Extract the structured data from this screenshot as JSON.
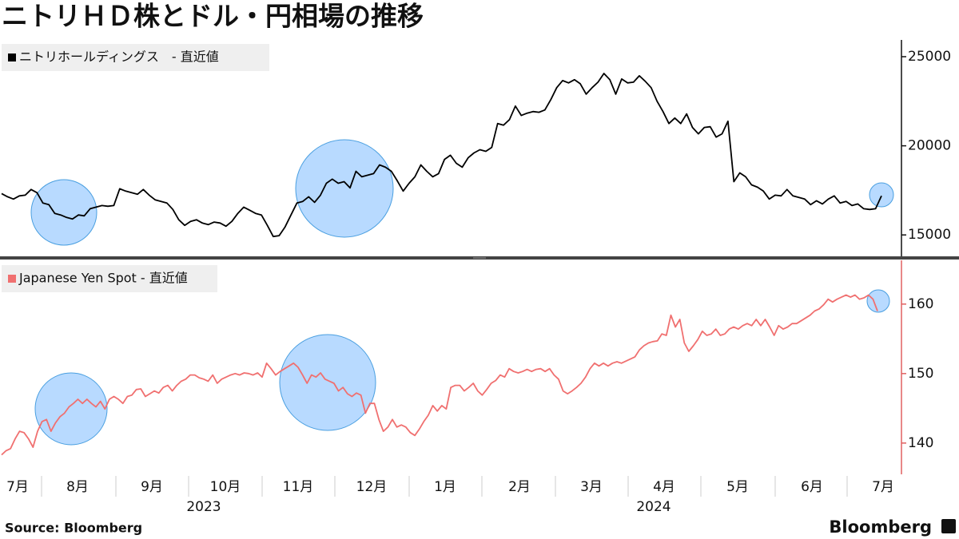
{
  "title": "ニトリＨＤ株とドル・円相場の推移",
  "source": "Source:  Bloomberg",
  "brand": "Bloomberg",
  "x_axis": {
    "months": [
      "7月",
      "8月",
      "9月",
      "10月",
      "11月",
      "12月",
      "1月",
      "2月",
      "3月",
      "4月",
      "5月",
      "6月",
      "7月"
    ],
    "years": [
      "2023",
      "2024"
    ]
  },
  "chart_data": [
    {
      "type": "line",
      "ylim": [
        13800,
        25940
      ],
      "yticks": [
        15000,
        20000,
        25000
      ],
      "series": [
        {
          "name": "ニトリホールディングス　- 直近値",
          "color": "#000000",
          "values": [
            17320,
            17140,
            17010,
            17190,
            17230,
            17550,
            17370,
            16790,
            16700,
            16210,
            16120,
            15980,
            15890,
            16120,
            16070,
            16470,
            16560,
            16650,
            16610,
            16650,
            17590,
            17460,
            17370,
            17280,
            17550,
            17230,
            16970,
            16880,
            16790,
            16430,
            15850,
            15540,
            15760,
            15850,
            15670,
            15580,
            15720,
            15670,
            15490,
            15760,
            16210,
            16560,
            16390,
            16210,
            16120,
            15540,
            14910,
            14960,
            15450,
            16120,
            16790,
            16880,
            17140,
            16830,
            17230,
            17900,
            18130,
            17900,
            17990,
            17640,
            18570,
            18260,
            18350,
            18440,
            18930,
            18800,
            18570,
            18040,
            17460,
            17900,
            18260,
            18930,
            18570,
            18260,
            18440,
            19240,
            19470,
            19020,
            18800,
            19330,
            19600,
            19780,
            19690,
            19910,
            21250,
            21160,
            21470,
            22230,
            21700,
            21830,
            21920,
            21880,
            22010,
            22590,
            23260,
            23660,
            23530,
            23710,
            23480,
            22900,
            23260,
            23570,
            24060,
            23710,
            22900,
            23750,
            23530,
            23570,
            23930,
            23620,
            23260,
            22500,
            21920,
            21250,
            21560,
            21250,
            21790,
            21030,
            20670,
            21030,
            21070,
            20490,
            20670,
            21380,
            17990,
            18480,
            18260,
            17810,
            17680,
            17460,
            17010,
            17230,
            17190,
            17550,
            17190,
            17100,
            17010,
            16700,
            16920,
            16740,
            17010,
            17190,
            16790,
            16880,
            16650,
            16740,
            16470,
            16430,
            16470,
            17190
          ]
        }
      ]
    },
    {
      "type": "line",
      "ylim": [
        135.5,
        166.3
      ],
      "yticks": [
        140,
        150,
        160
      ],
      "series": [
        {
          "name": "Japanese Yen Spot - 直近値",
          "color": "#f07070",
          "values": [
            138.3,
            138.9,
            139.2,
            140.6,
            141.7,
            141.5,
            140.6,
            139.4,
            141.7,
            143.1,
            143.4,
            141.7,
            142.9,
            143.8,
            144.3,
            145.2,
            145.7,
            146.3,
            145.7,
            146.3,
            145.7,
            145.2,
            146.0,
            144.9,
            146.3,
            146.7,
            146.3,
            145.7,
            146.7,
            146.9,
            147.7,
            147.8,
            146.7,
            147.1,
            147.5,
            147.2,
            148.0,
            148.3,
            147.5,
            148.3,
            148.9,
            149.2,
            149.8,
            149.8,
            149.4,
            149.2,
            148.9,
            149.8,
            148.6,
            149.2,
            149.5,
            149.8,
            150.0,
            149.8,
            150.1,
            150.0,
            149.8,
            150.1,
            149.5,
            151.5,
            150.7,
            149.8,
            150.3,
            150.7,
            151.1,
            151.5,
            150.9,
            149.8,
            148.6,
            149.8,
            149.5,
            150.1,
            149.2,
            148.9,
            148.6,
            147.5,
            148.0,
            147.1,
            146.7,
            147.2,
            146.9,
            144.3,
            145.7,
            145.7,
            143.4,
            141.7,
            142.3,
            143.4,
            142.3,
            142.6,
            142.3,
            141.5,
            141.1,
            142.0,
            143.1,
            144.0,
            145.4,
            144.6,
            145.4,
            144.9,
            148.0,
            148.3,
            148.3,
            147.5,
            148.0,
            148.6,
            147.5,
            146.9,
            147.7,
            148.6,
            149.0,
            149.8,
            149.5,
            150.7,
            150.3,
            150.1,
            150.3,
            150.6,
            150.3,
            150.6,
            150.7,
            150.3,
            150.7,
            149.8,
            149.2,
            147.5,
            147.1,
            147.5,
            148.0,
            148.6,
            149.5,
            150.7,
            151.5,
            151.1,
            151.5,
            151.1,
            151.5,
            151.7,
            151.5,
            151.8,
            152.1,
            152.4,
            153.4,
            154.0,
            154.4,
            154.6,
            154.7,
            155.7,
            155.5,
            158.4,
            156.7,
            157.8,
            154.4,
            153.2,
            154.0,
            154.9,
            156.1,
            155.5,
            155.7,
            156.4,
            155.5,
            155.7,
            156.4,
            156.7,
            156.4,
            156.9,
            157.2,
            156.9,
            157.8,
            156.9,
            157.8,
            156.7,
            155.5,
            156.9,
            156.4,
            156.7,
            157.2,
            157.2,
            157.6,
            158.0,
            158.4,
            159.0,
            159.3,
            159.9,
            160.7,
            160.3,
            160.7,
            161.0,
            161.3,
            161.0,
            161.3,
            160.7,
            160.9,
            161.3,
            160.7,
            159.0
          ]
        }
      ]
    }
  ]
}
